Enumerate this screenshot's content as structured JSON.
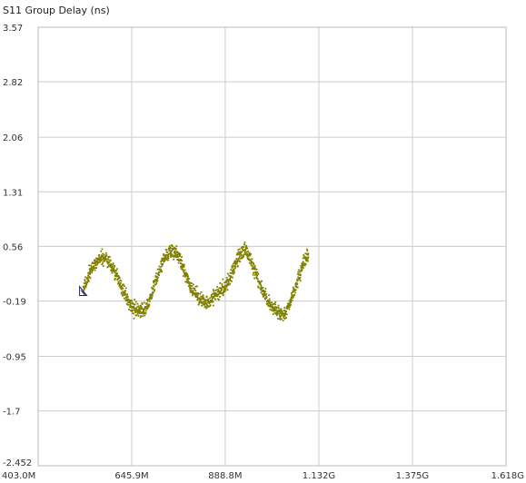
{
  "chart_data": {
    "type": "scatter",
    "title": "S11 Group Delay (ns)",
    "xlabel": "",
    "ylabel": "",
    "xlim": [
      403.0,
      1618.0
    ],
    "ylim": [
      -2.452,
      3.57
    ],
    "x_ticks": [
      403.0,
      645.9,
      888.8,
      1132.0,
      1375.0,
      1618.0
    ],
    "x_tick_labels": [
      "403.0M",
      "645.9M",
      "888.8M",
      "1.132G",
      "1.375G",
      "1.618G"
    ],
    "y_ticks": [
      3.57,
      2.82,
      2.06,
      1.31,
      0.56,
      -0.19,
      -0.95,
      -1.7,
      -2.452
    ],
    "y_tick_labels": [
      "3.57",
      "2.82",
      "2.06",
      "1.31",
      "0.56",
      "-0.19",
      "-0.95",
      "-1.7",
      "-2.452"
    ],
    "grid": true,
    "series": [
      {
        "color": "#808000",
        "points": [
          [
            520,
            -0.04
          ],
          [
            535,
            0.16
          ],
          [
            550,
            0.34
          ],
          [
            565,
            0.4
          ],
          [
            580,
            0.4
          ],
          [
            595,
            0.28
          ],
          [
            610,
            0.12
          ],
          [
            625,
            -0.06
          ],
          [
            640,
            -0.22
          ],
          [
            655,
            -0.32
          ],
          [
            670,
            -0.35
          ],
          [
            685,
            -0.26
          ],
          [
            700,
            -0.06
          ],
          [
            715,
            0.18
          ],
          [
            730,
            0.4
          ],
          [
            745,
            0.5
          ],
          [
            760,
            0.48
          ],
          [
            775,
            0.34
          ],
          [
            790,
            0.12
          ],
          [
            805,
            -0.04
          ],
          [
            820,
            -0.16
          ],
          [
            835,
            -0.2
          ],
          [
            850,
            -0.18
          ],
          [
            865,
            -0.1
          ],
          [
            880,
            -0.02
          ],
          [
            895,
            0.06
          ],
          [
            910,
            0.24
          ],
          [
            925,
            0.42
          ],
          [
            940,
            0.52
          ],
          [
            955,
            0.38
          ],
          [
            970,
            0.16
          ],
          [
            985,
            -0.04
          ],
          [
            1000,
            -0.18
          ],
          [
            1015,
            -0.3
          ],
          [
            1030,
            -0.38
          ],
          [
            1045,
            -0.36
          ],
          [
            1060,
            -0.18
          ],
          [
            1075,
            0.06
          ],
          [
            1090,
            0.3
          ],
          [
            1105,
            0.44
          ]
        ]
      }
    ],
    "marker_symbol": "◸"
  }
}
